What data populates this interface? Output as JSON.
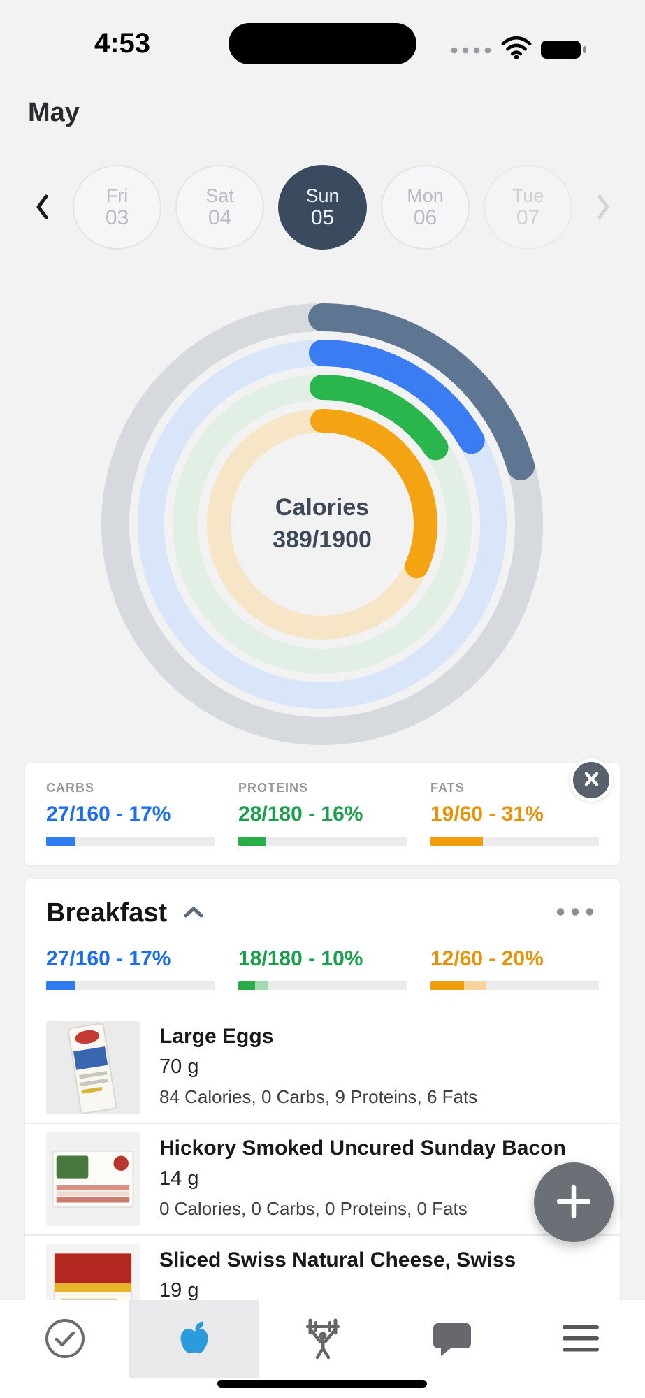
{
  "status_bar": {
    "time": "4:53"
  },
  "header": {
    "month": "May"
  },
  "date_picker": {
    "days": [
      {
        "day": "Fri",
        "date": "03",
        "selected": false
      },
      {
        "day": "Sat",
        "date": "04",
        "selected": false
      },
      {
        "day": "Sun",
        "date": "05",
        "selected": true
      },
      {
        "day": "Mon",
        "date": "06",
        "selected": false
      },
      {
        "day": "Tue",
        "date": "07",
        "selected": false
      }
    ]
  },
  "rings": {
    "center_label": "Calories",
    "center_value": "389/1900",
    "items": [
      {
        "name": "calories",
        "value": 389,
        "goal": 1900,
        "color": "#5f7693",
        "track": "#d6d9dd",
        "radius": 296,
        "stroke": 40
      },
      {
        "name": "carbs",
        "value": 27,
        "goal": 160,
        "color": "#3a7df2",
        "track": "#d9e5f8",
        "radius": 245,
        "stroke": 38
      },
      {
        "name": "proteins",
        "value": 28,
        "goal": 180,
        "color": "#2ab54d",
        "track": "#e2efe4",
        "radius": 196,
        "stroke": 36
      },
      {
        "name": "fats",
        "value": 19,
        "goal": 60,
        "color": "#f4a313",
        "track": "#f6e5c7",
        "radius": 148,
        "stroke": 34
      }
    ]
  },
  "macro_summary": {
    "items": [
      {
        "label": "CARBS",
        "value": "27/160 - 17%",
        "pct": 17,
        "pct_light": 0,
        "color": "#1b6ef3",
        "bar": "#2e7cf0",
        "light": "#aecdf7"
      },
      {
        "label": "PROTEINS",
        "value": "28/180 - 16%",
        "pct": 16,
        "pct_light": 0,
        "color": "#1aa04a",
        "bar": "#27ae47",
        "light": "#a5d9b2"
      },
      {
        "label": "FATS",
        "value": "19/60 - 31%",
        "pct": 31,
        "pct_light": 0,
        "color": "#e89207",
        "bar": "#f09d0e",
        "light": "#f6d49a"
      }
    ]
  },
  "meal": {
    "title": "Breakfast",
    "stats": [
      {
        "value": "27/160 - 17%",
        "pct": 17,
        "pct_light": 0,
        "color": "#1b6ef3",
        "bar": "#2e7cf0",
        "light": "#aecdf7"
      },
      {
        "value": "18/180 - 10%",
        "pct": 10,
        "pct_light": 8,
        "color": "#1aa04a",
        "bar": "#27ae47",
        "light": "#a5d9b2"
      },
      {
        "value": "12/60 - 20%",
        "pct": 20,
        "pct_light": 13,
        "color": "#e89207",
        "bar": "#f09d0e",
        "light": "#f6d49a"
      }
    ],
    "foods": [
      {
        "name": "Large Eggs",
        "amount": "70 g",
        "details": "84 Calories, 0 Carbs, 9 Proteins, 6 Fats"
      },
      {
        "name": "Hickory Smoked Uncured Sunday Bacon",
        "amount": "14 g",
        "details": "0 Calories, 0 Carbs, 0 Proteins, 0 Fats"
      },
      {
        "name": "Sliced Swiss Natural Cheese, Swiss",
        "amount": "19 g",
        "details": ""
      }
    ]
  },
  "tab_bar": {
    "tabs": [
      {
        "name": "tasks",
        "active": false
      },
      {
        "name": "nutrition",
        "active": true
      },
      {
        "name": "training",
        "active": false
      },
      {
        "name": "chat",
        "active": false
      },
      {
        "name": "menu",
        "active": false
      }
    ]
  }
}
